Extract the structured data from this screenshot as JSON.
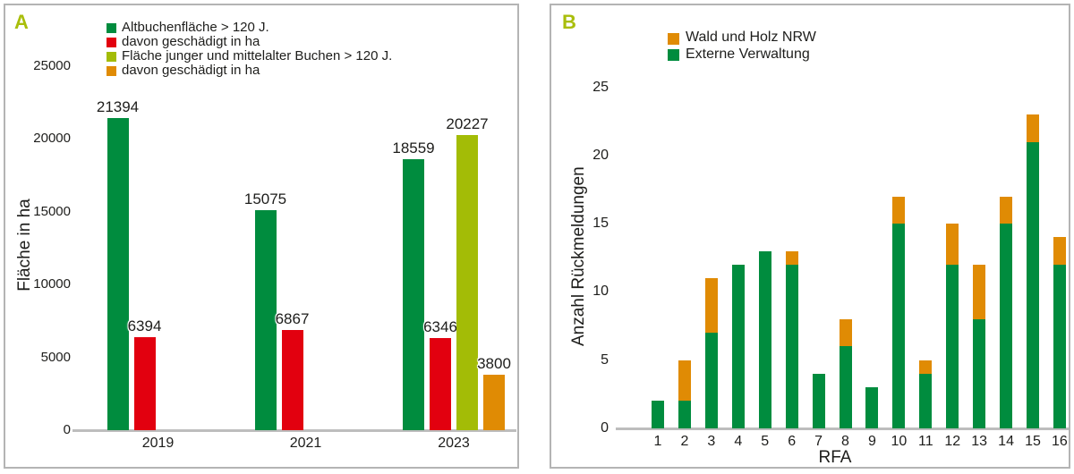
{
  "colors": {
    "green": "#008c3e",
    "red": "#e2000f",
    "yellow_green": "#a3bc06",
    "orange": "#e08b04",
    "panel_letter": "#a9be0b",
    "text": "#1d1d1b",
    "axis_line": "#bdbdbd",
    "panel_border": "#b4b4b4",
    "background": "#ffffff"
  },
  "panel_a": {
    "letter": "A",
    "ylabel": "Fläche in ha",
    "legend": [
      {
        "label": "Altbuchenfläche > 120 J.",
        "color_key": "green"
      },
      {
        "label": "davon geschädigt in ha",
        "color_key": "red"
      },
      {
        "label": "Fläche junger und mittelalter Buchen > 120 J.",
        "color_key": "yellow_green"
      },
      {
        "label": "davon geschädigt in ha",
        "color_key": "orange"
      }
    ]
  },
  "panel_b": {
    "letter": "B",
    "ylabel": "Anzahl Rückmeldungen",
    "xlabel": "RFA",
    "legend": [
      {
        "label": "Wald und Holz NRW",
        "color_key": "orange"
      },
      {
        "label": "Externe Verwaltung",
        "color_key": "green"
      }
    ]
  },
  "chart_data": [
    {
      "id": "A",
      "type": "bar",
      "title": "",
      "xlabel": "",
      "ylabel": "Fläche in ha",
      "ylim": [
        0,
        25000
      ],
      "yticks": [
        0,
        5000,
        10000,
        15000,
        20000,
        25000
      ],
      "categories": [
        "2019",
        "2021",
        "2023"
      ],
      "series": [
        {
          "name": "Altbuchenfläche > 120 J.",
          "color_key": "green",
          "values": [
            21394,
            15075,
            18559
          ]
        },
        {
          "name": "davon geschädigt in ha",
          "color_key": "red",
          "values": [
            6394,
            6867,
            6346
          ]
        },
        {
          "name": "Fläche junger und mittelalter Buchen > 120 J.",
          "color_key": "yellow_green",
          "values": [
            null,
            null,
            20227
          ]
        },
        {
          "name": "davon geschädigt in ha",
          "color_key": "orange",
          "values": [
            null,
            null,
            3800
          ]
        }
      ],
      "value_labels": true,
      "grid": false,
      "legend_position": "top"
    },
    {
      "id": "B",
      "type": "stacked_bar",
      "title": "",
      "xlabel": "RFA",
      "ylabel": "Anzahl Rückmeldungen",
      "ylim": [
        0,
        25
      ],
      "yticks": [
        0,
        5,
        10,
        15,
        20,
        25
      ],
      "categories": [
        "1",
        "2",
        "3",
        "4",
        "5",
        "6",
        "7",
        "8",
        "9",
        "10",
        "11",
        "12",
        "13",
        "14",
        "15",
        "16"
      ],
      "series": [
        {
          "name": "Externe Verwaltung",
          "color_key": "green",
          "values": [
            2,
            2,
            7,
            12,
            13,
            12,
            4,
            6,
            3,
            15,
            4,
            12,
            8,
            15,
            21,
            12
          ]
        },
        {
          "name": "Wald und Holz NRW",
          "color_key": "orange",
          "values": [
            0,
            3,
            4,
            0,
            0,
            1,
            0,
            2,
            0,
            2,
            1,
            3,
            4,
            2,
            2,
            2
          ]
        }
      ],
      "totals": [
        2,
        5,
        11,
        12,
        13,
        13,
        4,
        8,
        3,
        17,
        5,
        15,
        12,
        17,
        23,
        14
      ],
      "value_labels": false,
      "grid": false,
      "legend_position": "top"
    }
  ]
}
